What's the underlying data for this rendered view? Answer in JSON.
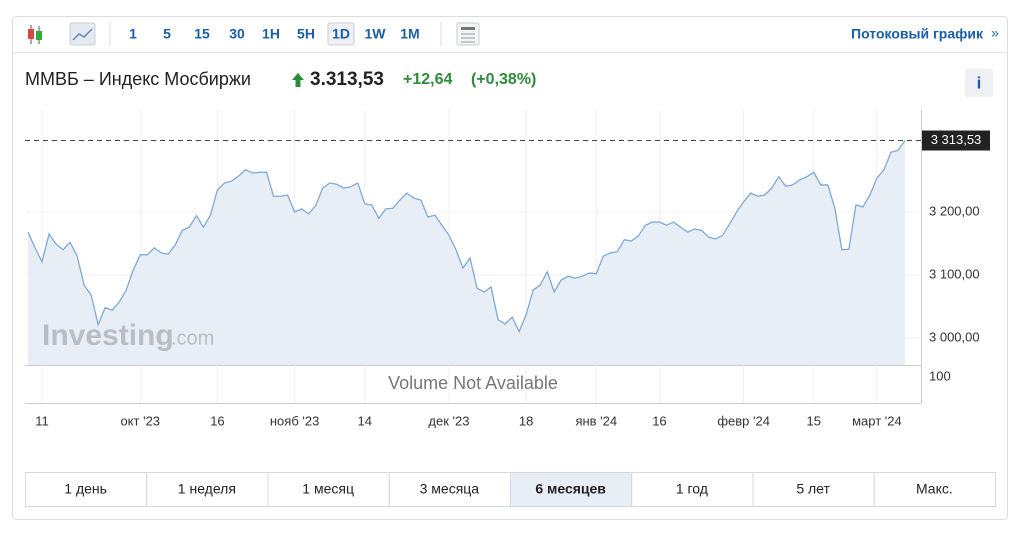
{
  "toolbar": {
    "intervals": [
      "1",
      "5",
      "15",
      "30",
      "1H",
      "5H",
      "1D",
      "1W",
      "1M"
    ],
    "active": "1D",
    "streaming": "Потоковый график",
    "more": "»"
  },
  "header": {
    "name": "ММВБ – Индекс Мосбиржи",
    "price": "3.313,53",
    "change": "+12,64",
    "change_pct": "(+0,38%)",
    "info": "i"
  },
  "watermark": {
    "brand": "Investing",
    "suffix": ".com"
  },
  "volume": {
    "note": "Volume Not Available",
    "tick": "100"
  },
  "chart_data": {
    "type": "area",
    "color": "#7fa9d6",
    "fill": "#e8eef6",
    "ylim": [
      2957,
      3362
    ],
    "yticks": [
      {
        "value": 3000,
        "label": "3 000,00"
      },
      {
        "value": 3100,
        "label": "3 100,00"
      },
      {
        "value": 3200,
        "label": "3 200,00"
      }
    ],
    "xlim": [
      0,
      125
    ],
    "xticks": [
      {
        "value": 2,
        "label": "11"
      },
      {
        "value": 16,
        "label": "окт '23"
      },
      {
        "value": 27,
        "label": "16"
      },
      {
        "value": 38,
        "label": "нояб '23"
      },
      {
        "value": 48,
        "label": "14"
      },
      {
        "value": 60,
        "label": "дек '23"
      },
      {
        "value": 71,
        "label": "18"
      },
      {
        "value": 81,
        "label": "янв '24"
      },
      {
        "value": 90,
        "label": "16"
      },
      {
        "value": 102,
        "label": "февр '24"
      },
      {
        "value": 112,
        "label": "15"
      },
      {
        "value": 121,
        "label": "март '24"
      }
    ],
    "last": {
      "value": 3313.53,
      "label": "3 313,53"
    },
    "values": [
      3168,
      3143,
      3121,
      3165,
      3149,
      3140,
      3152,
      3130,
      3084,
      3068,
      3021,
      3048,
      3044,
      3057,
      3076,
      3108,
      3132,
      3132,
      3143,
      3135,
      3133,
      3148,
      3171,
      3176,
      3194,
      3176,
      3195,
      3235,
      3246,
      3249,
      3257,
      3267,
      3262,
      3263,
      3263,
      3225,
      3225,
      3227,
      3200,
      3205,
      3197,
      3210,
      3238,
      3246,
      3244,
      3238,
      3240,
      3246,
      3213,
      3211,
      3190,
      3205,
      3206,
      3219,
      3230,
      3222,
      3219,
      3192,
      3195,
      3179,
      3163,
      3140,
      3111,
      3127,
      3079,
      3073,
      3081,
      3029,
      3022,
      3033,
      3010,
      3037,
      3076,
      3084,
      3105,
      3073,
      3092,
      3098,
      3095,
      3098,
      3103,
      3102,
      3130,
      3135,
      3137,
      3156,
      3154,
      3162,
      3179,
      3184,
      3184,
      3179,
      3184,
      3176,
      3168,
      3173,
      3171,
      3160,
      3157,
      3163,
      3181,
      3200,
      3216,
      3230,
      3225,
      3227,
      3238,
      3256,
      3241,
      3243,
      3251,
      3256,
      3263,
      3243,
      3243,
      3206,
      3140,
      3141,
      3211,
      3208,
      3227,
      3254,
      3267,
      3295,
      3298,
      3313.53
    ]
  },
  "ranges": {
    "options": [
      "1 день",
      "1 неделя",
      "1 месяц",
      "3 месяца",
      "6 месяцев",
      "1 год",
      "5 лет",
      "Макс."
    ],
    "active": "6 месяцев"
  }
}
